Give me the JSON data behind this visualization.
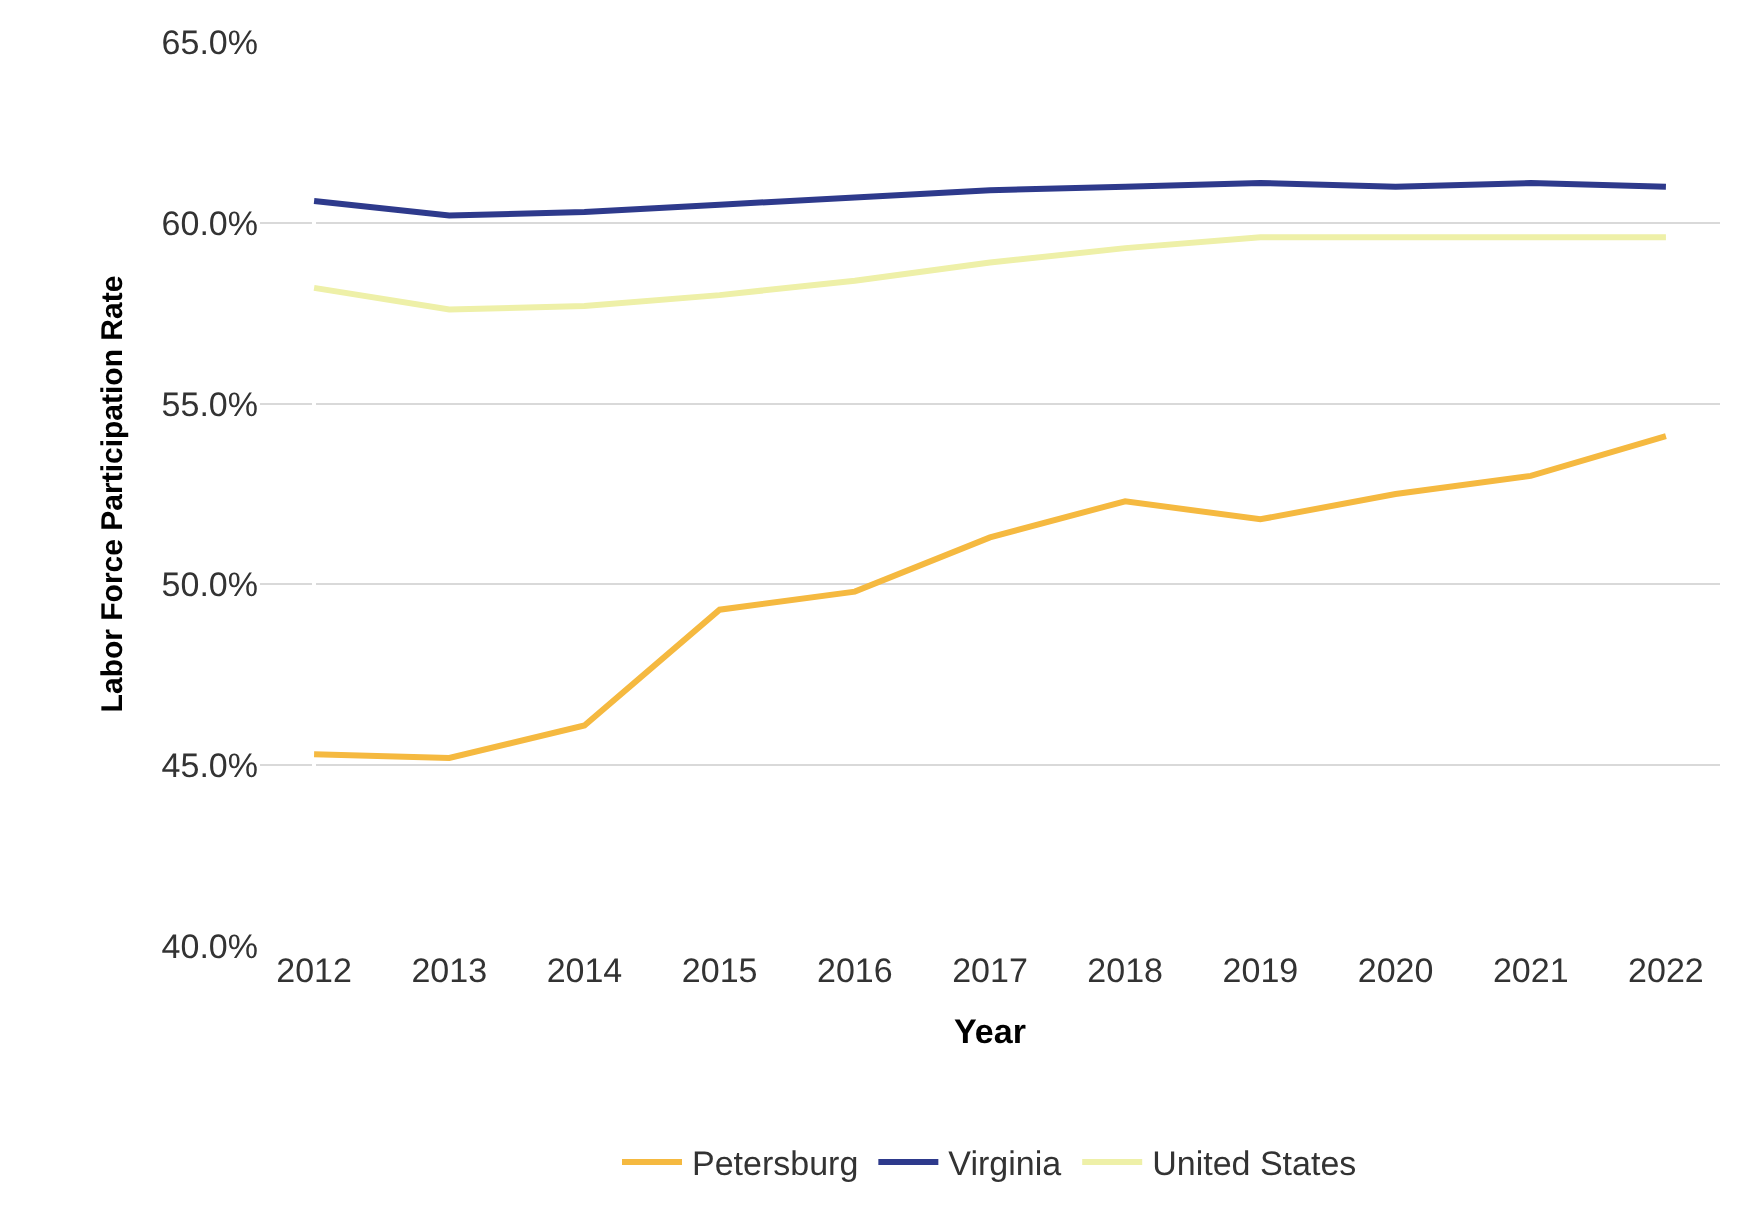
{
  "chart_data": {
    "type": "line",
    "xlabel": "Year",
    "ylabel": "Labor Force Participation Rate",
    "categories": [
      "2012",
      "2013",
      "2014",
      "2015",
      "2016",
      "2017",
      "2018",
      "2019",
      "2020",
      "2021",
      "2022"
    ],
    "series": [
      {
        "name": "Petersburg",
        "color": "#f5b940",
        "values": [
          45.3,
          45.2,
          46.1,
          49.3,
          49.8,
          51.3,
          52.3,
          51.8,
          52.5,
          53.0,
          54.1
        ]
      },
      {
        "name": "Virginia",
        "color": "#2e3a8c",
        "values": [
          60.6,
          60.2,
          60.3,
          60.5,
          60.7,
          60.9,
          61.0,
          61.1,
          61.0,
          61.1,
          61.0
        ]
      },
      {
        "name": "United States",
        "color": "#eef0a8",
        "values": [
          58.2,
          57.6,
          57.7,
          58.0,
          58.4,
          58.9,
          59.3,
          59.6,
          59.6,
          59.6,
          59.6
        ]
      }
    ],
    "ylim": [
      40,
      65
    ],
    "yticks": [
      {
        "value": 40,
        "label": "40.0%"
      },
      {
        "value": 45,
        "label": "45.0%"
      },
      {
        "value": 50,
        "label": "50.0%"
      },
      {
        "value": 55,
        "label": "55.0%"
      },
      {
        "value": 60,
        "label": "60.0%"
      },
      {
        "value": 65,
        "label": "65.0%"
      }
    ],
    "grid": "y",
    "legend": "bottom",
    "marker": "none",
    "line_style": "solid"
  }
}
